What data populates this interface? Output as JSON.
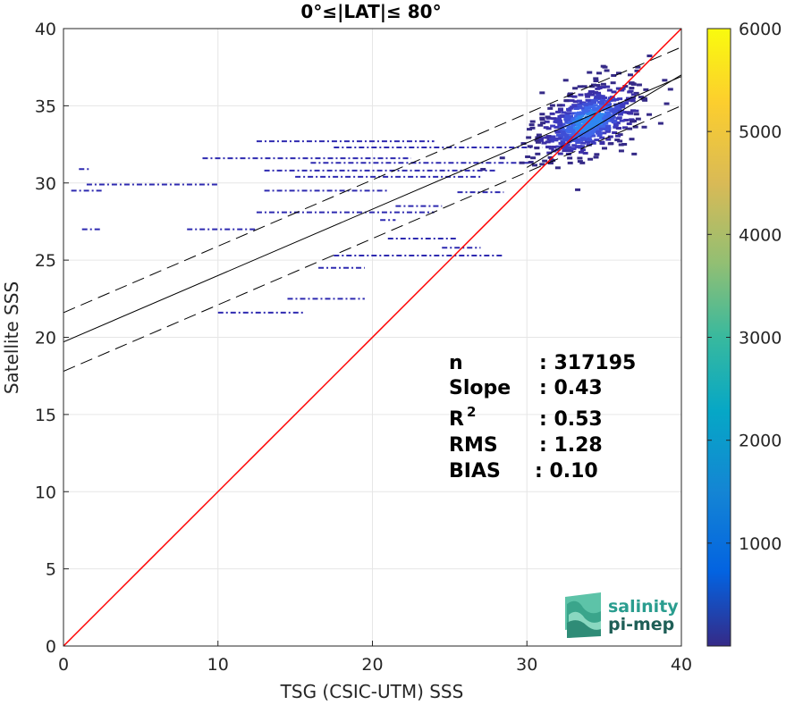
{
  "chart_data": {
    "type": "heatmap",
    "title": "0°≤|LAT|≤ 80°",
    "xlabel": "TSG (CSIC-UTM) SSS",
    "ylabel": "Satellite SSS",
    "xlim": [
      0,
      40
    ],
    "ylim": [
      0,
      40
    ],
    "xticks": [
      "0",
      "10",
      "20",
      "30",
      "40"
    ],
    "yticks": [
      "0",
      "5",
      "10",
      "15",
      "20",
      "25",
      "30",
      "35",
      "40"
    ],
    "grid": true,
    "colorbar": {
      "range": [
        0,
        6000
      ],
      "ticks": [
        "1000",
        "2000",
        "3000",
        "4000",
        "5000",
        "6000"
      ],
      "colormap": "parula"
    },
    "reference_line": {
      "label": "1:1",
      "color": "#ff0000",
      "x": [
        0,
        40
      ],
      "y": [
        0,
        40
      ]
    },
    "fit_lines": [
      {
        "role": "regression",
        "intercept": 19.7,
        "slope": 0.43,
        "style": "solid",
        "color": "#000000"
      },
      {
        "role": "upper-bound",
        "intercept": 21.6,
        "slope": 0.43,
        "style": "dashed",
        "color": "#000000"
      },
      {
        "role": "lower-bound",
        "intercept": 17.8,
        "slope": 0.43,
        "style": "dashed",
        "color": "#000000"
      },
      {
        "role": "core-fit",
        "intercept": 13.0,
        "slope": 0.6,
        "x_range": [
          30,
          40
        ],
        "style": "solid",
        "color": "#000000"
      }
    ],
    "density_cluster": {
      "center": [
        34.0,
        34.0
      ],
      "spread": [
        1.6,
        1.3
      ]
    },
    "sparse_segments": [
      {
        "y": 32.7,
        "x0": 12.5,
        "x1": 24.0
      },
      {
        "y": 32.3,
        "x0": 17.5,
        "x1": 31.0
      },
      {
        "y": 31.6,
        "x0": 9.0,
        "x1": 22.5
      },
      {
        "y": 31.3,
        "x0": 16.0,
        "x1": 30.5
      },
      {
        "y": 30.9,
        "x0": 1.0,
        "x1": 1.8
      },
      {
        "y": 30.8,
        "x0": 13.0,
        "x1": 28.0
      },
      {
        "y": 30.4,
        "x0": 15.0,
        "x1": 27.0
      },
      {
        "y": 29.9,
        "x0": 1.5,
        "x1": 10.0
      },
      {
        "y": 29.5,
        "x0": 0.5,
        "x1": 2.5
      },
      {
        "y": 29.5,
        "x0": 13.0,
        "x1": 21.0
      },
      {
        "y": 29.4,
        "x0": 25.5,
        "x1": 28.5
      },
      {
        "y": 28.5,
        "x0": 21.5,
        "x1": 24.5
      },
      {
        "y": 28.1,
        "x0": 12.5,
        "x1": 24.0
      },
      {
        "y": 27.6,
        "x0": 20.5,
        "x1": 21.5
      },
      {
        "y": 27.0,
        "x0": 1.2,
        "x1": 2.5
      },
      {
        "y": 27.0,
        "x0": 8.0,
        "x1": 12.5
      },
      {
        "y": 26.4,
        "x0": 21.0,
        "x1": 25.5
      },
      {
        "y": 25.8,
        "x0": 24.5,
        "x1": 27.0
      },
      {
        "y": 25.3,
        "x0": 17.5,
        "x1": 28.5
      },
      {
        "y": 24.5,
        "x0": 16.5,
        "x1": 19.5
      },
      {
        "y": 22.5,
        "x0": 14.5,
        "x1": 19.5
      },
      {
        "y": 21.6,
        "x0": 10.0,
        "x1": 15.5
      }
    ],
    "stats": [
      {
        "label": "n",
        "value": ": 317195"
      },
      {
        "label": "Slope",
        "value": ": 0.43"
      },
      {
        "label": "R",
        "sup": "2",
        "value": ": 0.53"
      },
      {
        "label": "RMS",
        "value": ": 1.28"
      },
      {
        "label": "BIAS",
        "value": ": 0.10"
      }
    ]
  },
  "logo": {
    "line1": "salinity",
    "line2": "pi-mep"
  }
}
